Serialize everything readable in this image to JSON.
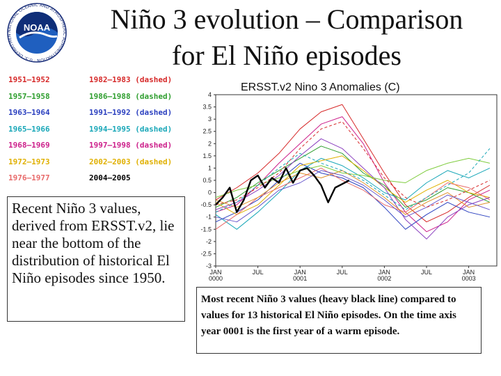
{
  "logo": {
    "text": "NOAA",
    "ring_text": "NATIONAL OCEANIC AND ATMOSPHERIC ADMINISTRATION · U.S. DEPARTMENT OF COMMERCE"
  },
  "title_line1": "Niño 3 evolution – Comparison",
  "title_line2": "for El Niño episodes",
  "left_text": "Recent Niño 3 values, derived from ERSST.v2, lie near the bottom of the distribution of historical El Niño episodes since 1950.",
  "caption": "Most recent Niño 3 values (heavy black line) compared to values for 13 historical El Niño episodes. On the time axis year 0001 is the first year of a warm episode.",
  "colors": {
    "red": "#d62828",
    "green": "#2e9e2e",
    "blue": "#2a3fbf",
    "cyan": "#19a7b8",
    "magenta": "#cc1f8a",
    "yellow": "#e0b000",
    "pink": "#e86a6a",
    "black": "#000000",
    "purple": "#8a3fbf",
    "lightgreen": "#7fcc3f",
    "orange": "#e0902a",
    "violet": "#6a5acd"
  },
  "chart_data": {
    "type": "line",
    "title": "ERSST.v2 Nino 3 Anomalies (C)",
    "x_tick_labels": [
      "JAN 0000",
      "JUL",
      "JAN 0001",
      "JUL",
      "JAN 0002",
      "JUL",
      "JAN 0003"
    ],
    "x_tick_months": [
      0,
      6,
      12,
      18,
      24,
      30,
      36
    ],
    "y_ticks": [
      "4",
      "3.5",
      "3",
      "2.5",
      "2",
      "1.5",
      "1",
      "0.5",
      "0",
      "-0.5",
      "-1",
      "-1.5",
      "-2",
      "-2.5",
      "-3"
    ],
    "ylim": [
      -3,
      4
    ],
    "xlim": [
      0,
      40
    ],
    "legend": [
      {
        "label": "1951–1952",
        "color": "#d62828",
        "dashed": false
      },
      {
        "label": "1957–1958",
        "color": "#2e9e2e",
        "dashed": false
      },
      {
        "label": "1963–1964",
        "color": "#2a3fbf",
        "dashed": false
      },
      {
        "label": "1965–1966",
        "color": "#19a7b8",
        "dashed": false
      },
      {
        "label": "1968–1969",
        "color": "#cc1f8a",
        "dashed": false
      },
      {
        "label": "1972–1973",
        "color": "#e0b000",
        "dashed": false
      },
      {
        "label": "1976–1977",
        "color": "#e86a6a",
        "dashed": false
      },
      {
        "label": "1982–1983 (dashed)",
        "color": "#d62828",
        "dashed": true
      },
      {
        "label": "1986–1988 (dashed)",
        "color": "#2e9e2e",
        "dashed": true
      },
      {
        "label": "1991–1992 (dashed)",
        "color": "#2a3fbf",
        "dashed": true
      },
      {
        "label": "1994–1995 (dashed)",
        "color": "#19a7b8",
        "dashed": true
      },
      {
        "label": "1997–1998 (dashed)",
        "color": "#cc1f8a",
        "dashed": true
      },
      {
        "label": "2002–2003 (dashed)",
        "color": "#e0b000",
        "dashed": true
      },
      {
        "label": "2004–2005",
        "color": "#000000",
        "dashed": false
      }
    ],
    "series": [
      {
        "name": "2004–2005",
        "color": "#000000",
        "width": 2.4,
        "x": [
          0,
          1,
          2,
          3,
          4,
          5,
          6,
          7,
          8,
          9,
          10,
          11,
          12,
          13,
          14,
          15,
          16,
          17,
          18,
          19
        ],
        "y": [
          -0.5,
          -0.2,
          0.2,
          -0.8,
          -0.3,
          0.5,
          0.7,
          0.2,
          0.6,
          0.4,
          1.0,
          0.4,
          0.9,
          1.0,
          0.7,
          0.3,
          -0.4,
          0.2,
          0.35,
          0.5
        ]
      },
      {
        "color": "#d62828",
        "width": 1,
        "x": [
          0,
          3,
          6,
          9,
          12,
          15,
          18,
          21,
          24,
          27,
          30,
          33,
          36,
          39
        ],
        "y": [
          -0.3,
          0.2,
          0.8,
          1.6,
          2.6,
          3.3,
          3.6,
          2.2,
          0.8,
          -0.5,
          -1.2,
          -0.8,
          -0.2,
          0.3
        ]
      },
      {
        "color": "#cc1f8a",
        "width": 1,
        "x": [
          0,
          3,
          6,
          9,
          12,
          15,
          18,
          21,
          24,
          27,
          30,
          33,
          36,
          39
        ],
        "y": [
          -0.8,
          -0.5,
          0.3,
          1.2,
          2.0,
          2.8,
          3.1,
          2.0,
          0.4,
          -0.8,
          -1.6,
          -1.2,
          -0.3,
          0.1
        ]
      },
      {
        "color": "#2e9e2e",
        "width": 1,
        "x": [
          0,
          3,
          6,
          9,
          12,
          15,
          18,
          21,
          24,
          27,
          30,
          33,
          36,
          39
        ],
        "y": [
          -0.6,
          -0.2,
          0.4,
          0.9,
          1.4,
          1.9,
          1.6,
          0.8,
          0.3,
          -0.6,
          -0.3,
          0.2,
          0.0,
          -0.4
        ]
      },
      {
        "color": "#2a3fbf",
        "width": 1,
        "x": [
          0,
          3,
          6,
          9,
          12,
          15,
          18,
          21,
          24,
          27,
          30,
          33,
          36,
          39
        ],
        "y": [
          -1.2,
          -0.8,
          -0.3,
          0.5,
          1.2,
          0.8,
          0.6,
          0.2,
          -0.6,
          -1.5,
          -0.9,
          -0.4,
          -0.8,
          -1.0
        ]
      },
      {
        "color": "#19a7b8",
        "width": 1,
        "x": [
          0,
          3,
          6,
          9,
          12,
          15,
          18,
          21,
          24,
          27,
          30,
          33,
          36,
          39
        ],
        "y": [
          -0.9,
          -1.5,
          -0.8,
          0.0,
          0.9,
          1.4,
          1.1,
          0.6,
          0.0,
          -0.3,
          0.4,
          0.9,
          0.6,
          1.0
        ]
      },
      {
        "color": "#e0b000",
        "width": 1,
        "x": [
          0,
          3,
          6,
          9,
          12,
          15,
          18,
          21,
          24,
          27,
          30,
          33,
          36,
          39
        ],
        "y": [
          -0.4,
          -0.9,
          -0.5,
          0.3,
          1.1,
          1.3,
          1.5,
          0.9,
          0.2,
          -0.4,
          0.1,
          0.5,
          0.0,
          -0.2
        ]
      },
      {
        "color": "#e86a6a",
        "width": 1,
        "x": [
          0,
          3,
          6,
          9,
          12,
          15,
          18,
          21,
          24,
          27,
          30,
          33,
          36,
          39
        ],
        "y": [
          -1.5,
          -0.9,
          -0.2,
          0.2,
          0.6,
          1.0,
          0.5,
          0.1,
          -0.5,
          -0.8,
          -0.2,
          0.4,
          0.2,
          -0.3
        ]
      },
      {
        "color": "#8a3fbf",
        "width": 1,
        "x": [
          0,
          3,
          6,
          9,
          12,
          15,
          18,
          21,
          24,
          27,
          30,
          33,
          36,
          39
        ],
        "y": [
          -0.7,
          -0.4,
          0.1,
          0.7,
          1.5,
          2.2,
          1.8,
          1.0,
          0.2,
          -1.1,
          -1.9,
          -1.0,
          -0.5,
          -0.2
        ]
      },
      {
        "color": "#7fcc3f",
        "width": 1,
        "x": [
          0,
          3,
          6,
          9,
          12,
          15,
          18,
          21,
          24,
          27,
          30,
          33,
          36,
          39
        ],
        "y": [
          -0.2,
          0.1,
          0.3,
          0.6,
          0.9,
          1.1,
          0.8,
          0.7,
          0.5,
          0.4,
          0.9,
          1.2,
          1.4,
          1.2
        ]
      },
      {
        "color": "#e0902a",
        "width": 1,
        "x": [
          0,
          3,
          6,
          9,
          12,
          15,
          18,
          21,
          24,
          27,
          30,
          33,
          36,
          39
        ],
        "y": [
          -0.3,
          -0.6,
          -0.2,
          0.4,
          0.8,
          0.6,
          0.9,
          0.4,
          -0.2,
          -0.9,
          -0.4,
          0.0,
          -0.6,
          -0.4
        ]
      },
      {
        "color": "#6a5acd",
        "width": 1,
        "x": [
          0,
          3,
          6,
          9,
          12,
          15,
          18,
          21,
          24,
          27,
          30,
          33,
          36,
          39
        ],
        "y": [
          -1.0,
          -1.2,
          -0.6,
          0.1,
          0.4,
          0.9,
          0.7,
          0.3,
          -0.3,
          -1.0,
          -0.6,
          -0.1,
          -0.4,
          -0.7
        ]
      },
      {
        "color": "#d62828",
        "width": 1,
        "dashed": true,
        "x": [
          0,
          3,
          6,
          9,
          12,
          15,
          18,
          21,
          24,
          27,
          30,
          33,
          36,
          39
        ],
        "y": [
          -0.5,
          -0.3,
          0.2,
          0.8,
          1.8,
          2.6,
          2.9,
          1.8,
          0.6,
          -0.2,
          -0.6,
          -0.3,
          0.1,
          0.5
        ]
      },
      {
        "color": "#19a7b8",
        "width": 1,
        "dashed": true,
        "x": [
          0,
          3,
          6,
          9,
          12,
          15,
          18,
          21,
          24,
          27,
          30,
          33,
          36,
          39
        ],
        "y": [
          -0.8,
          -0.4,
          0.3,
          1.0,
          1.6,
          1.2,
          0.9,
          0.5,
          -0.1,
          -0.7,
          -0.2,
          0.3,
          0.8,
          1.8
        ]
      }
    ]
  }
}
